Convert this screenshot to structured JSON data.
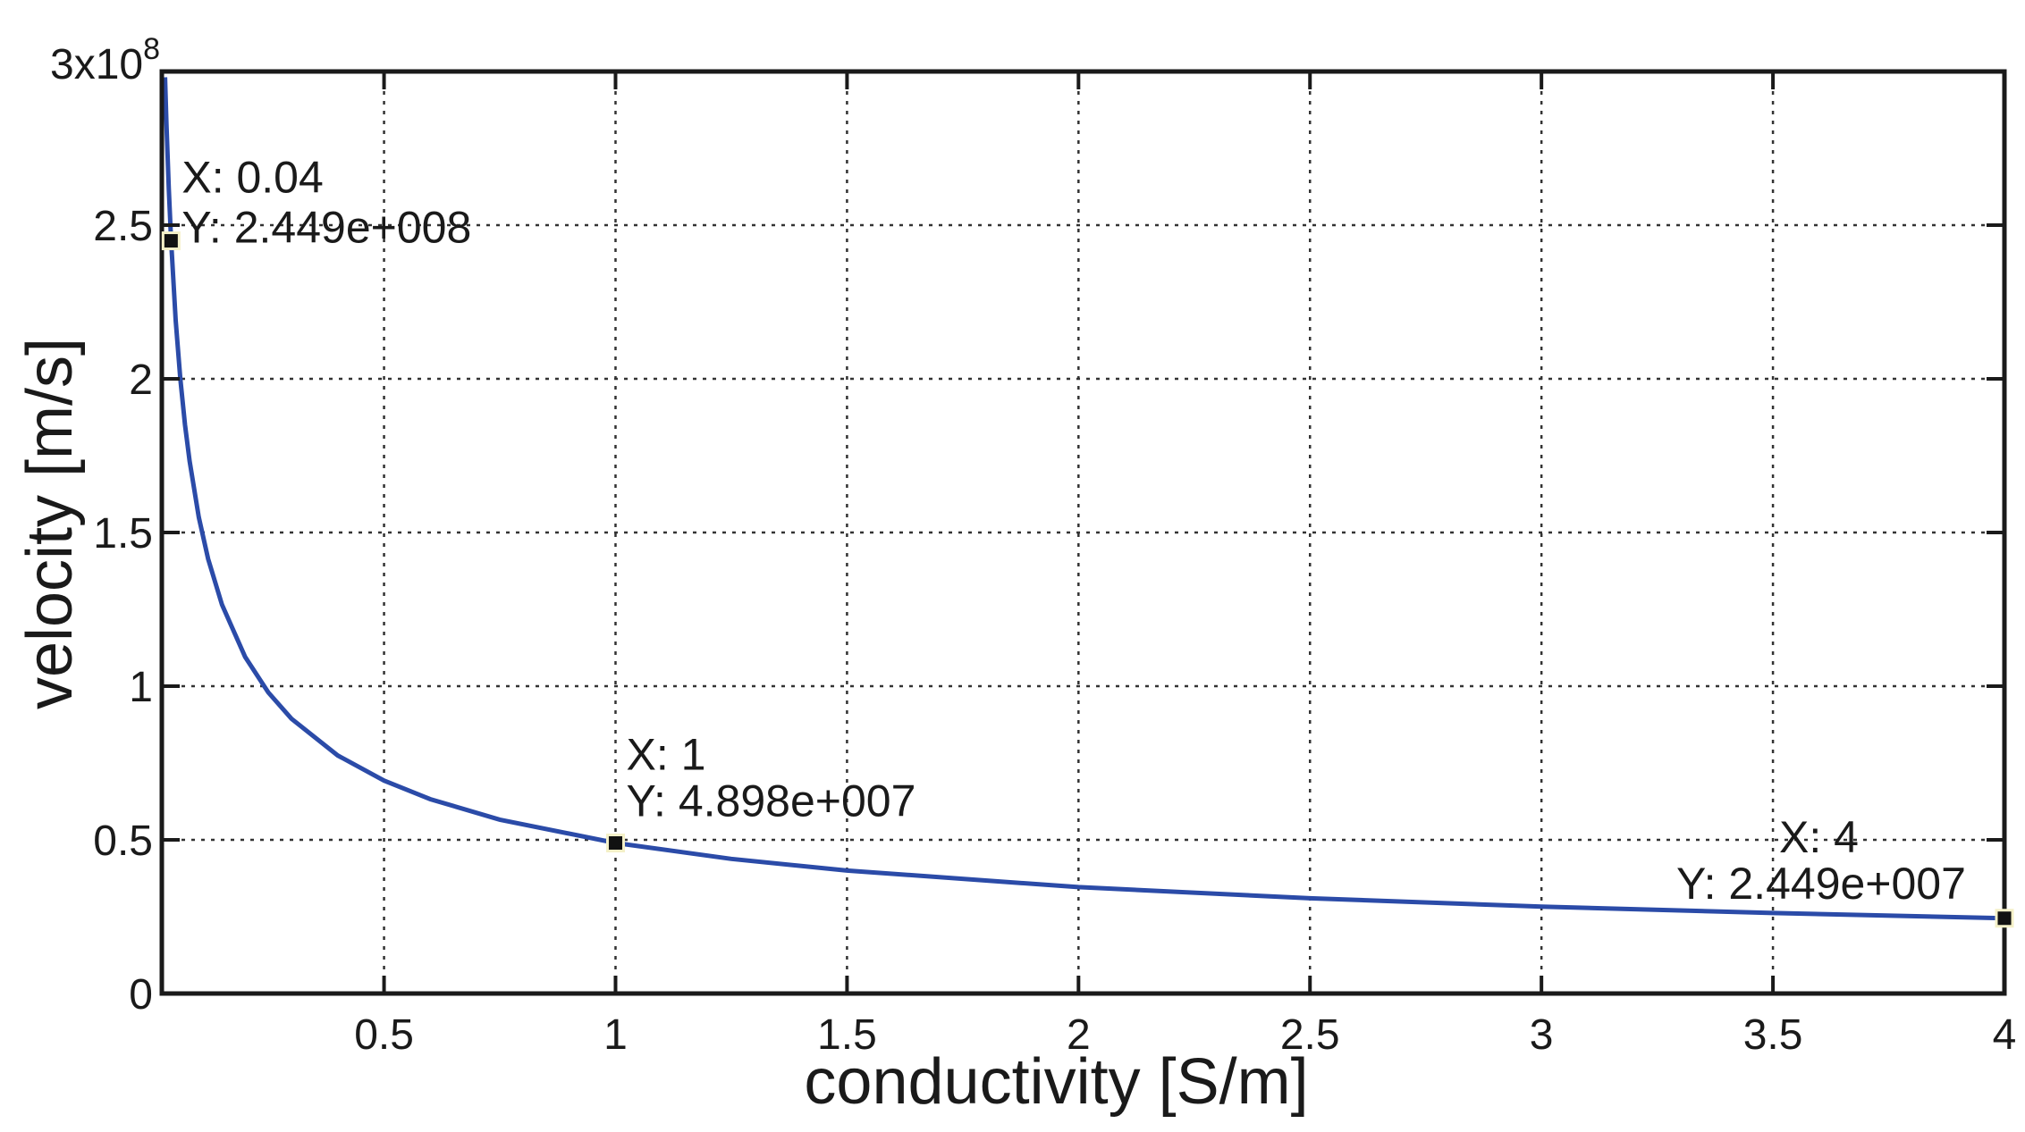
{
  "chart_data": {
    "type": "line",
    "title": "",
    "xlabel": "conductivity [S/m]",
    "ylabel": "velocity [m/s]",
    "xlim": [
      0.02,
      4.0
    ],
    "ylim": [
      0,
      300000000
    ],
    "y_exponent_label": {
      "base": "3x10",
      "power": "8"
    },
    "x_ticks": [
      {
        "value": 0.5,
        "label": "0.5"
      },
      {
        "value": 1,
        "label": "1"
      },
      {
        "value": 1.5,
        "label": "1.5"
      },
      {
        "value": 2,
        "label": "2"
      },
      {
        "value": 2.5,
        "label": "2.5"
      },
      {
        "value": 3,
        "label": "3"
      },
      {
        "value": 3.5,
        "label": "3.5"
      },
      {
        "value": 4,
        "label": "4"
      }
    ],
    "y_ticks": [
      {
        "value": 0,
        "label": "0"
      },
      {
        "value": 50000000,
        "label": "0.5"
      },
      {
        "value": 100000000,
        "label": "1"
      },
      {
        "value": 150000000,
        "label": "1.5"
      },
      {
        "value": 200000000,
        "label": "2"
      },
      {
        "value": 250000000,
        "label": "2.5"
      }
    ],
    "grid": true,
    "series": [
      {
        "color": "#2b4ba8",
        "x": [
          0.027,
          0.03,
          0.035,
          0.04,
          0.05,
          0.06,
          0.07,
          0.08,
          0.1,
          0.12,
          0.15,
          0.2,
          0.25,
          0.3,
          0.4,
          0.5,
          0.6,
          0.75,
          1.0,
          1.25,
          1.5,
          2.0,
          2.5,
          3.0,
          3.5,
          4.0
        ],
        "y": [
          298100000,
          282800000,
          261800000,
          244900000,
          219000000,
          200000000,
          185100000,
          173200000,
          154900000,
          141400000,
          126500000,
          109500000,
          97960000,
          89430000,
          77450000,
          69270000,
          63230000,
          56560000,
          48980000,
          43810000,
          39990000,
          34630000,
          30980000,
          28280000,
          26180000,
          24490000
        ]
      }
    ],
    "data_tips": [
      {
        "x": 0.04,
        "y": 244900000,
        "x_text": "X: 0.04",
        "y_text": "Y: 2.449e+008"
      },
      {
        "x": 1,
        "y": 48980000,
        "x_text": "X: 1",
        "y_text": "Y: 4.898e+007"
      },
      {
        "x": 4,
        "y": 24490000,
        "x_text": "X: 4",
        "y_text": "Y: 2.449e+007"
      }
    ]
  }
}
